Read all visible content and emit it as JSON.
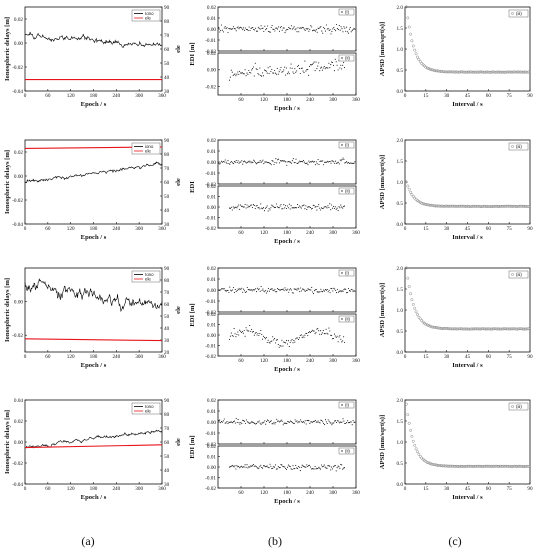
{
  "figure": {
    "captions": [
      "(a)",
      "(b)",
      "(c)"
    ],
    "colors": {
      "ion": "#000000",
      "ele": "#e8141c",
      "axis": "#111111",
      "apsd_marker": "#8a8a8a"
    }
  },
  "rows": [
    {
      "ion": {
        "type": "line",
        "ylabel": "Ionospheric delays [m]",
        "y2label": "ele",
        "xlabel": "Epoch / s",
        "x_ticks": [
          "0",
          "60",
          "120",
          "180",
          "240",
          "300",
          "360"
        ],
        "y_ticks": [
          "-0.04",
          "-0.02",
          "0.00",
          "0.02"
        ],
        "y2_ticks": [
          "30",
          "40",
          "50",
          "60",
          "70",
          "80",
          "90"
        ],
        "ylim": [
          -0.04,
          0.03
        ],
        "y2lim": [
          30,
          90
        ],
        "legend": [
          "Iono",
          "ele"
        ],
        "ion_start": 0.008,
        "ion_end": -0.002,
        "ion_noise": 0.0022,
        "ele_value": 38.2,
        "ele_end": 38.2
      },
      "edi": {
        "type": "scatter",
        "ylabel": "EDI [m]",
        "xlabel": "Epoch / s",
        "x_ticks": [
          "60",
          "120",
          "180",
          "240",
          "300",
          "360"
        ],
        "top": {
          "legend": "(i)",
          "y_ticks": [
            "-0.02",
            "-0.01",
            "0.00",
            "0.01",
            "0.02"
          ],
          "ylim": [
            -0.02,
            0.02
          ],
          "noise": 0.0035,
          "x_start": 2,
          "x_end": 358,
          "trend": "flat"
        },
        "bottom": {
          "legend": "(ii)",
          "y_ticks": [
            "-0.02",
            "0.00",
            "0.02"
          ],
          "ylim": [
            -0.03,
            0.02
          ],
          "noise": 0.007,
          "x_start": 30,
          "x_end": 330,
          "trend": "rise"
        }
      },
      "apsd": {
        "type": "scatter",
        "ylabel": "APSD [mm/sqrt(s)]",
        "xlabel": "Interval / s",
        "legend": "(iii)",
        "x_ticks": [
          "0",
          "15",
          "30",
          "45",
          "60",
          "75",
          "90"
        ],
        "y_ticks": [
          "0.0",
          "0.5",
          "1.0",
          "1.5",
          "2.0"
        ],
        "ylim": [
          0,
          2.0
        ],
        "start": 2.0,
        "floor": 0.45
      }
    },
    {
      "ion": {
        "type": "line",
        "ylabel": "Ionospheric delays [m]",
        "y2label": "ele",
        "xlabel": "Epoch / s",
        "x_ticks": [
          "0",
          "60",
          "120",
          "180",
          "240",
          "300",
          "360"
        ],
        "y_ticks": [
          "-0.04",
          "-0.02",
          "0.00",
          "0.02"
        ],
        "y2_ticks": [
          "30",
          "40",
          "50",
          "60",
          "70",
          "80",
          "90"
        ],
        "ylim": [
          -0.04,
          0.03
        ],
        "y2lim": [
          30,
          90
        ],
        "legend": [
          "iono",
          "ele"
        ],
        "ion_start": -0.006,
        "ion_end": 0.011,
        "ion_noise": 0.0015,
        "ele_value": 84.0,
        "ele_end": 85.0
      },
      "edi": {
        "type": "scatter",
        "ylabel": "EDI",
        "xlabel": "Epoch / s",
        "x_ticks": [
          "60",
          "120",
          "180",
          "240",
          "300",
          "360"
        ],
        "top": {
          "legend": "(i)",
          "y_ticks": [
            "-0.02",
            "-0.01",
            "0.00",
            "0.01",
            "0.02"
          ],
          "ylim": [
            -0.02,
            0.02
          ],
          "noise": 0.0025,
          "x_start": 2,
          "x_end": 358,
          "trend": "flat"
        },
        "bottom": {
          "legend": "(ii)",
          "y_ticks": [
            "-0.02",
            "-0.01",
            "0.00",
            "0.01",
            "0.02"
          ],
          "ylim": [
            -0.02,
            0.02
          ],
          "noise": 0.0028,
          "x_start": 30,
          "x_end": 330,
          "trend": "flat"
        }
      },
      "apsd": {
        "type": "scatter",
        "ylabel": "APSD [mm/sqrt(s)]",
        "xlabel": "Interval / s",
        "legend": "(iii)",
        "x_ticks": [
          "0",
          "15",
          "30",
          "45",
          "60",
          "75",
          "90"
        ],
        "y_ticks": [
          "0.0",
          "0.5",
          "1.0",
          "1.5",
          "2.0"
        ],
        "ylim": [
          0,
          2.0
        ],
        "start": 1.0,
        "floor": 0.42
      }
    },
    {
      "ion": {
        "type": "line",
        "ylabel": "Ionospheric delays [m]",
        "y2label": "ele",
        "xlabel": "Epoch / s",
        "x_ticks": [
          "0",
          "60",
          "120",
          "180",
          "240",
          "300",
          "360"
        ],
        "y_ticks": [
          "-0.02",
          "0.00"
        ],
        "y2_ticks": [
          "20",
          "30",
          "40",
          "50",
          "60",
          "70",
          "80",
          "90"
        ],
        "ylim": [
          -0.03,
          0.02
        ],
        "y2lim": [
          20,
          90
        ],
        "legend": [
          "Iono",
          "ele"
        ],
        "ion_start": 0.009,
        "ion_end": -0.003,
        "ion_noise": 0.0035,
        "ele_value": 31.0,
        "ele_end": 29.5
      },
      "edi": {
        "type": "scatter",
        "ylabel": "EDI [m]",
        "xlabel": "Epoch / s",
        "x_ticks": [
          "60",
          "120",
          "180",
          "240",
          "300",
          "360"
        ],
        "top": {
          "legend": "(i)",
          "y_ticks": [
            "-0.02",
            "-0.01",
            "0.00",
            "0.01",
            "0.02"
          ],
          "ylim": [
            -0.02,
            0.02
          ],
          "noise": 0.0028,
          "x_start": 2,
          "x_end": 358,
          "trend": "flat"
        },
        "bottom": {
          "legend": "(ii)",
          "y_ticks": [
            "-0.02",
            "-0.01",
            "0.00",
            "0.01",
            "0.02"
          ],
          "ylim": [
            -0.02,
            0.02
          ],
          "noise": 0.004,
          "x_start": 30,
          "x_end": 330,
          "trend": "wave"
        }
      },
      "apsd": {
        "type": "scatter",
        "ylabel": "APSD [mm/sqrt(s)]",
        "xlabel": "Interval / s",
        "legend": "(iii)",
        "x_ticks": [
          "0",
          "15",
          "30",
          "45",
          "60",
          "75",
          "90"
        ],
        "y_ticks": [
          "0.0",
          "0.5",
          "1.0",
          "1.5",
          "2.0"
        ],
        "ylim": [
          0,
          2.0
        ],
        "start": 2.0,
        "floor": 0.55
      }
    },
    {
      "ion": {
        "type": "line",
        "ylabel": "Ionospheric delays [m]",
        "y2label": "ele",
        "xlabel": "Epoch / s",
        "x_ticks": [
          "0",
          "60",
          "120",
          "180",
          "240",
          "300",
          "360"
        ],
        "y_ticks": [
          "-0.04",
          "-0.02",
          "0.00",
          "0.02",
          "0.04"
        ],
        "y2_ticks": [
          "30",
          "40",
          "50",
          "60",
          "70",
          "80",
          "90"
        ],
        "ylim": [
          -0.04,
          0.04
        ],
        "y2lim": [
          30,
          90
        ],
        "legend": [
          "Iono",
          "ele"
        ],
        "ion_start": -0.005,
        "ion_end": 0.011,
        "ion_noise": 0.0016,
        "ele_value": 56.0,
        "ele_end": 58.0
      },
      "edi": {
        "type": "scatter",
        "ylabel": "EDI [m]",
        "xlabel": "Epoch / s",
        "x_ticks": [
          "60",
          "120",
          "180",
          "240",
          "300",
          "360"
        ],
        "top": {
          "legend": "(i)",
          "y_ticks": [
            "-0.02",
            "-0.01",
            "0.00",
            "0.01",
            "0.02"
          ],
          "ylim": [
            -0.02,
            0.02
          ],
          "noise": 0.0025,
          "x_start": 2,
          "x_end": 358,
          "trend": "flat"
        },
        "bottom": {
          "legend": "(ii)",
          "y_ticks": [
            "-0.02",
            "-0.01",
            "0.00",
            "0.01",
            "0.02"
          ],
          "ylim": [
            -0.02,
            0.02
          ],
          "noise": 0.0025,
          "x_start": 30,
          "x_end": 330,
          "trend": "flat"
        }
      },
      "apsd": {
        "type": "scatter",
        "ylabel": "APSD [mm/sqrt(s)]",
        "xlabel": "Interval / s",
        "legend": "(iii)",
        "x_ticks": [
          "0",
          "15",
          "30",
          "45",
          "60",
          "75",
          "90"
        ],
        "y_ticks": [
          "0.0",
          "0.5",
          "1.0",
          "1.5",
          "2.0"
        ],
        "ylim": [
          0,
          2.0
        ],
        "start": 1.9,
        "floor": 0.42
      }
    }
  ]
}
